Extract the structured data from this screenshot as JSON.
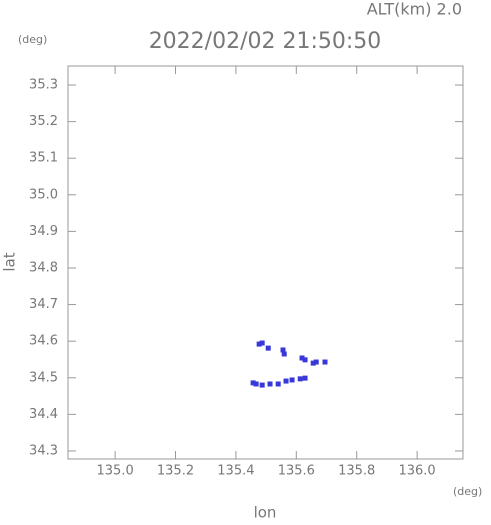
{
  "chart_data": {
    "type": "scatter",
    "title": "2022/02/02 21:50:50",
    "subtitle": "ALT(km) 2.0",
    "y_unit": "(deg)",
    "x_unit": "(deg)",
    "xlabel": "lon",
    "ylabel": "lat",
    "color": "#3838d8",
    "x": [
      135.477,
      135.487,
      135.507,
      135.556,
      135.56,
      135.619,
      135.629,
      135.656,
      135.666,
      135.695,
      135.457,
      135.467,
      135.487,
      135.513,
      135.54,
      135.566,
      135.586,
      135.613,
      135.629
    ],
    "y": [
      34.592,
      34.595,
      34.581,
      34.576,
      34.565,
      34.554,
      34.549,
      34.54,
      34.543,
      34.543,
      34.486,
      34.483,
      34.48,
      34.483,
      34.483,
      34.491,
      34.494,
      34.497,
      34.499
    ],
    "xlim": [
      134.844,
      136.152
    ],
    "ylim": [
      34.278,
      35.352
    ],
    "xticks": [
      {
        "value": 135,
        "label": "135.0"
      },
      135.2,
      135.4,
      135.6,
      135.8,
      {
        "value": 136,
        "label": "136.0"
      }
    ],
    "yticks": [
      34.3,
      34.4,
      34.5,
      34.6,
      34.7,
      34.8,
      34.9,
      {
        "value": 35,
        "label": "35.0"
      },
      35.1,
      35.2,
      35.3
    ]
  }
}
